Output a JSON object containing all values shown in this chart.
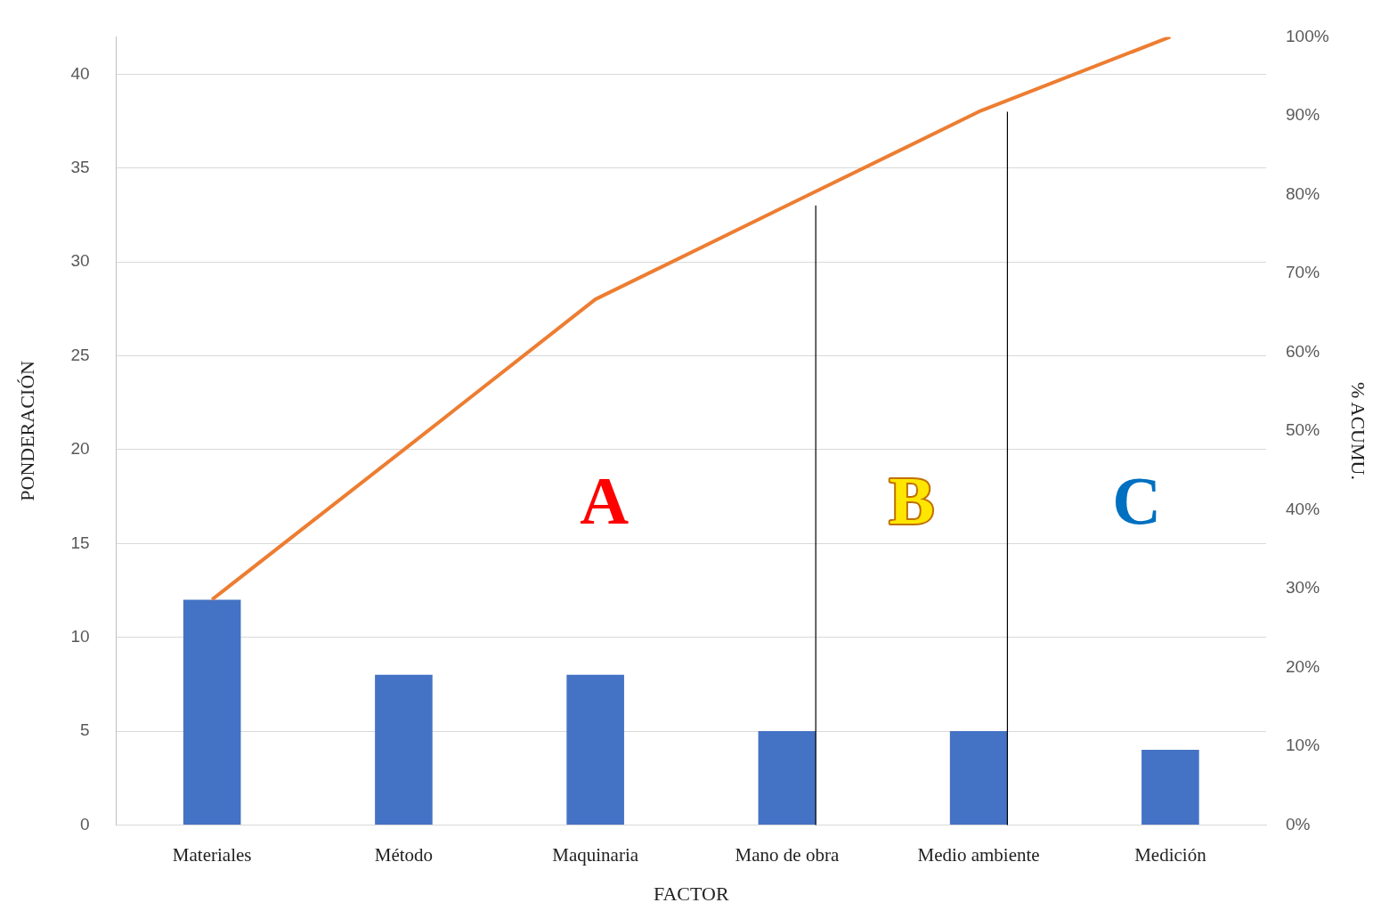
{
  "chart_data": {
    "type": "bar",
    "xlabel": "FACTOR",
    "ylabel": "PONDERACIÓN",
    "y2label": "% ACUMU.",
    "categories": [
      "Materiales",
      "Método",
      "Maquinaria",
      "Mano de obra",
      "Medio ambiente",
      "Medición"
    ],
    "series": [
      {
        "color": "#4472c4",
        "values": [
          12,
          8,
          8,
          5,
          5,
          4
        ]
      },
      {
        "type": "line",
        "axis": "y2",
        "color": "#ed7d31",
        "marker": "none",
        "values": [
          28.6,
          47.6,
          66.7,
          78.6,
          90.5,
          100
        ]
      }
    ],
    "ylim": [
      0,
      42
    ],
    "yticks": [
      0,
      5,
      10,
      15,
      20,
      25,
      30,
      35,
      40
    ],
    "y2lim": [
      0,
      100
    ],
    "y2ticks": [
      {
        "value": 0,
        "label": "0%"
      },
      {
        "value": 10,
        "label": "10%"
      },
      {
        "value": 20,
        "label": "20%"
      },
      {
        "value": 30,
        "label": "30%"
      },
      {
        "value": 40,
        "label": "40%"
      },
      {
        "value": 50,
        "label": "50%"
      },
      {
        "value": 60,
        "label": "60%"
      },
      {
        "value": 70,
        "label": "70%"
      },
      {
        "value": 80,
        "label": "80%"
      },
      {
        "value": 90,
        "label": "90%"
      },
      {
        "value": 100,
        "label": "100%"
      }
    ],
    "ref_lines": [
      {
        "axis": "x",
        "value": "Mano de obra",
        "color": "#000000"
      },
      {
        "axis": "x",
        "value": "Medio ambiente",
        "color": "#000000"
      }
    ],
    "annotations": [
      "A",
      "B",
      "C"
    ],
    "grid": "y",
    "legend": false
  }
}
